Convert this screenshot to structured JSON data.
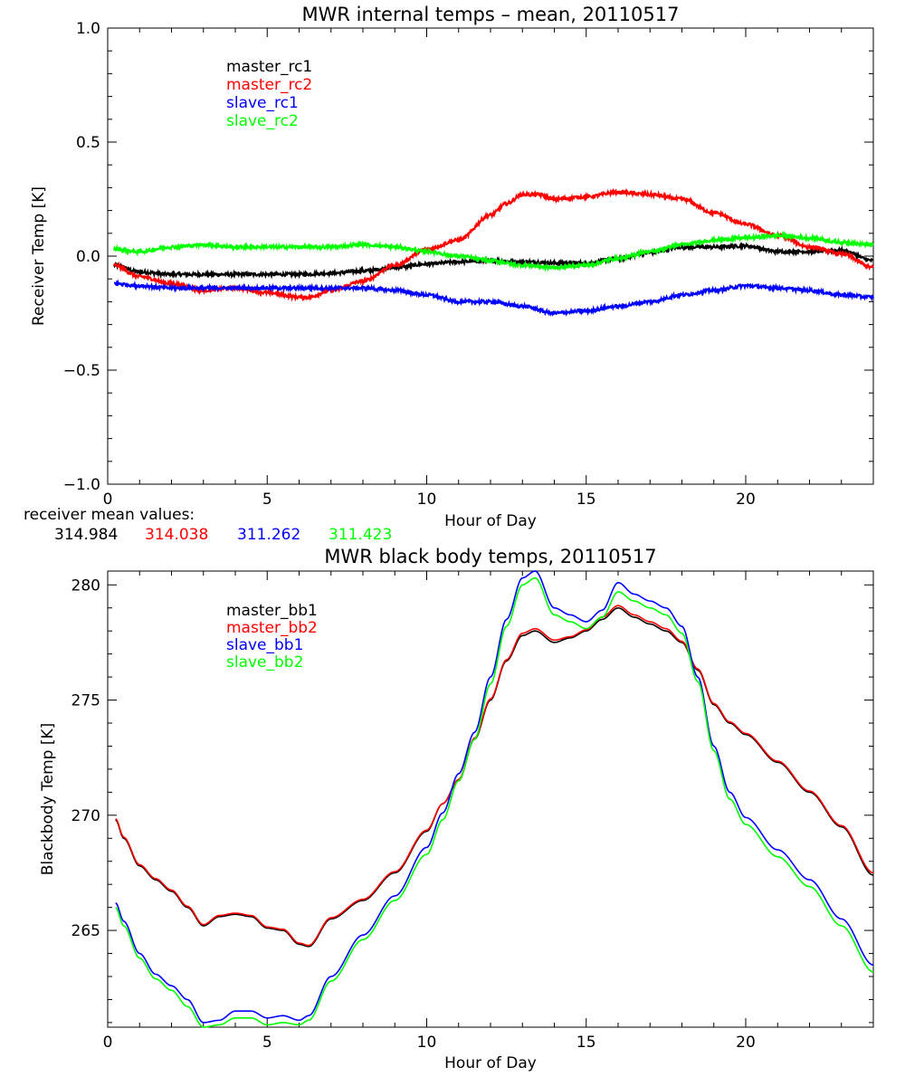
{
  "chart_data": [
    {
      "type": "line",
      "title": "MWR internal temps – mean, 20110517",
      "xlabel": "Hour of Day",
      "ylabel": "Receiver Temp [K]",
      "xlim": [
        0,
        24
      ],
      "ylim": [
        -1.0,
        1.0
      ],
      "xticks": [
        0,
        5,
        10,
        15,
        20
      ],
      "yticks": [
        -1.0,
        -0.5,
        0.0,
        0.5,
        1.0
      ],
      "ytick_labels": [
        "−1.0",
        "−0.5",
        "0.0",
        "0.5",
        "1.0"
      ],
      "legend_position": "top-left",
      "noisy": true,
      "series": [
        {
          "name": "master_rc1",
          "color": "#000000",
          "x": [
            0.2,
            1,
            2,
            3,
            4,
            5,
            6,
            7,
            8,
            9,
            10,
            11,
            12,
            13,
            14,
            15,
            16,
            17,
            18,
            19,
            20,
            21,
            22,
            23,
            24
          ],
          "y": [
            -0.04,
            -0.07,
            -0.08,
            -0.08,
            -0.08,
            -0.08,
            -0.08,
            -0.075,
            -0.065,
            -0.05,
            -0.035,
            -0.025,
            -0.02,
            -0.025,
            -0.03,
            -0.03,
            -0.01,
            0.015,
            0.04,
            0.04,
            0.045,
            0.02,
            0.02,
            0.025,
            -0.02
          ]
        },
        {
          "name": "master_rc2",
          "color": "#ff0000",
          "x": [
            0.2,
            1,
            2,
            3,
            4,
            5,
            6,
            6.3,
            7,
            8,
            9,
            10,
            11,
            12,
            12.5,
            13,
            13.5,
            14,
            15,
            16,
            17,
            18,
            19,
            20,
            21,
            22,
            23,
            24
          ],
          "y": [
            -0.04,
            -0.09,
            -0.12,
            -0.15,
            -0.14,
            -0.16,
            -0.18,
            -0.18,
            -0.15,
            -0.11,
            -0.04,
            0.03,
            0.07,
            0.18,
            0.23,
            0.27,
            0.27,
            0.25,
            0.26,
            0.28,
            0.27,
            0.25,
            0.19,
            0.14,
            0.09,
            0.04,
            0.01,
            -0.05
          ]
        },
        {
          "name": "slave_rc1",
          "color": "#0000ff",
          "x": [
            0.2,
            1,
            2,
            3,
            4,
            5,
            6,
            7,
            8,
            9,
            10,
            11,
            12,
            13,
            14,
            15,
            16,
            17,
            18,
            19,
            20,
            21,
            22,
            23,
            24
          ],
          "y": [
            -0.12,
            -0.13,
            -0.14,
            -0.14,
            -0.14,
            -0.14,
            -0.14,
            -0.14,
            -0.14,
            -0.15,
            -0.17,
            -0.2,
            -0.2,
            -0.22,
            -0.25,
            -0.24,
            -0.22,
            -0.2,
            -0.17,
            -0.15,
            -0.13,
            -0.14,
            -0.15,
            -0.17,
            -0.18
          ]
        },
        {
          "name": "slave_rc2",
          "color": "#00ff00",
          "x": [
            0.2,
            1,
            2,
            3,
            4,
            5,
            6,
            7,
            8,
            9,
            10,
            11,
            12,
            13,
            14,
            15,
            16,
            17,
            18,
            19,
            20,
            21,
            22,
            23,
            24
          ],
          "y": [
            0.03,
            0.02,
            0.04,
            0.05,
            0.04,
            0.04,
            0.04,
            0.04,
            0.05,
            0.04,
            0.02,
            0.0,
            -0.02,
            -0.04,
            -0.05,
            -0.04,
            -0.01,
            0.02,
            0.05,
            0.07,
            0.08,
            0.09,
            0.08,
            0.06,
            0.05
          ]
        }
      ],
      "annotation": {
        "label": "receiver mean values:",
        "values": [
          {
            "text": "314.984",
            "color": "#000000"
          },
          {
            "text": "314.038",
            "color": "#ff0000"
          },
          {
            "text": "311.262",
            "color": "#0000ff"
          },
          {
            "text": "311.423",
            "color": "#00ff00"
          }
        ]
      }
    },
    {
      "type": "line",
      "title": "MWR black body temps, 20110517",
      "xlabel": "Hour of Day",
      "ylabel": "Blackbody Temp [K]",
      "xlim": [
        0,
        24
      ],
      "ylim": [
        260.8,
        280.6
      ],
      "xticks": [
        0,
        5,
        10,
        15,
        20
      ],
      "yticks": [
        265,
        270,
        275,
        280
      ],
      "ytick_labels": [
        "265",
        "270",
        "275",
        "280"
      ],
      "legend_position": "top-left",
      "noisy": false,
      "series": [
        {
          "name": "master_bb1",
          "color": "#000000",
          "x": [
            0.25,
            0.5,
            1,
            1.5,
            2,
            2.5,
            3,
            3.5,
            4,
            4.5,
            5,
            5.5,
            6,
            6.3,
            7,
            8,
            9,
            10,
            10.5,
            11,
            11.5,
            12,
            12.5,
            13,
            13.4,
            14,
            14.5,
            15,
            15.5,
            16,
            16.5,
            17,
            17.5,
            18,
            18.5,
            19,
            19.5,
            20,
            21,
            22,
            23,
            24
          ],
          "y": [
            269.8,
            269.0,
            267.8,
            267.2,
            266.7,
            266.0,
            265.2,
            265.6,
            265.7,
            265.6,
            265.1,
            265.0,
            264.4,
            264.3,
            265.5,
            266.3,
            267.5,
            269.3,
            270.5,
            271.5,
            273.3,
            275.0,
            276.7,
            277.8,
            278.0,
            277.5,
            277.7,
            278.0,
            278.5,
            279.0,
            278.6,
            278.3,
            278.0,
            277.5,
            276.3,
            274.8,
            274.0,
            273.5,
            272.3,
            271.0,
            269.5,
            267.4
          ]
        },
        {
          "name": "master_bb2",
          "color": "#ff0000",
          "x": [
            0.25,
            0.5,
            1,
            1.5,
            2,
            2.5,
            3,
            3.5,
            4,
            4.5,
            5,
            5.5,
            6,
            6.3,
            7,
            8,
            9,
            10,
            10.5,
            11,
            11.5,
            12,
            12.5,
            13,
            13.4,
            14,
            14.5,
            15,
            15.5,
            16,
            16.5,
            17,
            17.5,
            18,
            18.5,
            19,
            19.5,
            20,
            21,
            22,
            23,
            24
          ],
          "y": [
            269.85,
            269.05,
            267.85,
            267.25,
            266.75,
            266.05,
            265.25,
            265.65,
            265.75,
            265.65,
            265.15,
            265.05,
            264.45,
            264.35,
            265.55,
            266.35,
            267.55,
            269.35,
            270.5,
            271.55,
            273.35,
            275.05,
            276.75,
            277.9,
            278.1,
            277.6,
            277.75,
            278.05,
            278.6,
            279.1,
            278.7,
            278.4,
            278.1,
            277.55,
            276.35,
            274.85,
            274.05,
            273.55,
            272.35,
            271.05,
            269.55,
            267.5
          ]
        },
        {
          "name": "slave_bb1",
          "color": "#0000ff",
          "x": [
            0.25,
            0.5,
            1,
            1.5,
            2,
            2.5,
            3,
            3.5,
            4,
            4.5,
            5,
            5.5,
            6,
            6.3,
            7,
            8,
            9,
            10,
            10.5,
            11,
            11.5,
            12,
            12.5,
            13,
            13.4,
            14,
            14.5,
            15,
            15.5,
            16,
            16.5,
            17,
            17.5,
            18,
            18.5,
            19,
            19.5,
            20,
            21,
            22,
            23,
            24
          ],
          "y": [
            266.2,
            265.4,
            264.0,
            263.1,
            262.6,
            262.0,
            261.0,
            261.1,
            261.5,
            261.5,
            261.2,
            261.3,
            261.1,
            261.3,
            263.0,
            264.8,
            266.5,
            268.6,
            270.1,
            271.8,
            273.6,
            276.0,
            278.5,
            280.3,
            280.6,
            279.0,
            278.7,
            278.4,
            278.9,
            280.1,
            279.6,
            279.3,
            279.0,
            278.2,
            276.0,
            273.0,
            271.0,
            269.9,
            268.5,
            267.2,
            265.5,
            263.5
          ]
        },
        {
          "name": "slave_bb2",
          "color": "#00ff00",
          "x": [
            0.25,
            0.5,
            1,
            1.5,
            2,
            2.5,
            3,
            3.5,
            4,
            4.5,
            5,
            5.5,
            6,
            6.3,
            7,
            8,
            9,
            10,
            10.5,
            11,
            11.5,
            12,
            12.5,
            13,
            13.4,
            14,
            14.5,
            15,
            15.5,
            16,
            16.5,
            17,
            17.5,
            18,
            18.5,
            19,
            19.5,
            20,
            21,
            22,
            23,
            24
          ],
          "y": [
            266.0,
            265.2,
            263.8,
            262.9,
            262.4,
            261.7,
            260.8,
            260.9,
            261.2,
            261.2,
            260.9,
            261.0,
            260.9,
            261.1,
            262.8,
            264.6,
            266.3,
            268.3,
            269.8,
            271.5,
            273.3,
            275.7,
            278.2,
            280.0,
            280.3,
            278.7,
            278.4,
            278.1,
            278.6,
            279.7,
            279.3,
            279.0,
            278.7,
            277.9,
            275.8,
            272.8,
            270.7,
            269.6,
            268.2,
            266.9,
            265.2,
            263.2
          ]
        }
      ]
    }
  ]
}
